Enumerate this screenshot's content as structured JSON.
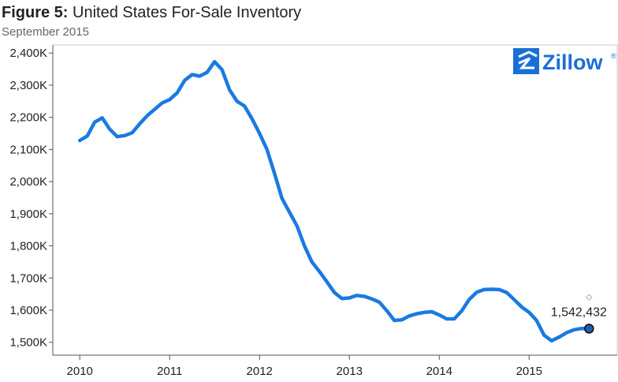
{
  "header": {
    "figure_label": "Figure 5:",
    "title": "United States For-Sale Inventory",
    "subtitle": "September 2015"
  },
  "logo": {
    "text": "Zillow",
    "mark": "®",
    "icon": "zillow-z-icon"
  },
  "colors": {
    "line": "#1a7ae0",
    "endpoint": "#1f5fa8",
    "marker": "#b5c3a0",
    "axis": "#555555",
    "logo": "#1a6fd6"
  },
  "chart_data": {
    "type": "line",
    "title": "United States For-Sale Inventory",
    "subtitle": "September 2015",
    "xlabel": "",
    "ylabel": "",
    "x_ticks": [
      "2010",
      "2011",
      "2012",
      "2013",
      "2014",
      "2015"
    ],
    "y_ticks": [
      "1,500K",
      "1,600K",
      "1,700K",
      "1,800K",
      "1,900K",
      "2,000K",
      "2,100K",
      "2,200K",
      "2,300K",
      "2,400K"
    ],
    "y_tick_values": [
      1500000,
      1600000,
      1700000,
      1800000,
      1900000,
      2000000,
      2100000,
      2200000,
      2300000,
      2400000
    ],
    "xlim": [
      2009.7,
      2015.98
    ],
    "ylim": [
      1460000,
      2425000
    ],
    "grid": false,
    "series": [
      {
        "x": [
          2010.0,
          2010.083,
          2010.167,
          2010.25,
          2010.333,
          2010.417,
          2010.5,
          2010.583,
          2010.667,
          2010.75,
          2010.833,
          2010.917,
          2011.0,
          2011.083,
          2011.167,
          2011.25,
          2011.333,
          2011.417,
          2011.5,
          2011.583,
          2011.667,
          2011.75,
          2011.833,
          2011.917,
          2012.0,
          2012.083,
          2012.167,
          2012.25,
          2012.333,
          2012.417,
          2012.5,
          2012.583,
          2012.667,
          2012.75,
          2012.833,
          2012.917,
          2013.0,
          2013.083,
          2013.167,
          2013.25,
          2013.333,
          2013.417,
          2013.5,
          2013.583,
          2013.667,
          2013.75,
          2013.833,
          2013.917,
          2014.0,
          2014.083,
          2014.167,
          2014.25,
          2014.333,
          2014.417,
          2014.5,
          2014.583,
          2014.667,
          2014.75,
          2014.833,
          2014.917,
          2015.0,
          2015.083,
          2015.167,
          2015.25,
          2015.333,
          2015.417,
          2015.5,
          2015.583,
          2015.667
        ],
        "y": [
          2128000,
          2142000,
          2185000,
          2198000,
          2163000,
          2140000,
          2143000,
          2152000,
          2180000,
          2205000,
          2225000,
          2245000,
          2255000,
          2276000,
          2315000,
          2333000,
          2328000,
          2340000,
          2373000,
          2348000,
          2285000,
          2250000,
          2235000,
          2195000,
          2150000,
          2100000,
          2025000,
          1948000,
          1905000,
          1862000,
          1800000,
          1750000,
          1720000,
          1688000,
          1655000,
          1636000,
          1638000,
          1646000,
          1643000,
          1635000,
          1625000,
          1598000,
          1568000,
          1570000,
          1582000,
          1589000,
          1593000,
          1595000,
          1585000,
          1573000,
          1573000,
          1598000,
          1633000,
          1656000,
          1664000,
          1665000,
          1664000,
          1655000,
          1633000,
          1610000,
          1593000,
          1568000,
          1522000,
          1505000,
          1516000,
          1530000,
          1539000,
          1543000,
          1542432
        ]
      }
    ],
    "endpoint_label": "1,542,432",
    "endpoint_value": 1542432,
    "marker_value": 1640000,
    "marker_x": 2015.667
  }
}
